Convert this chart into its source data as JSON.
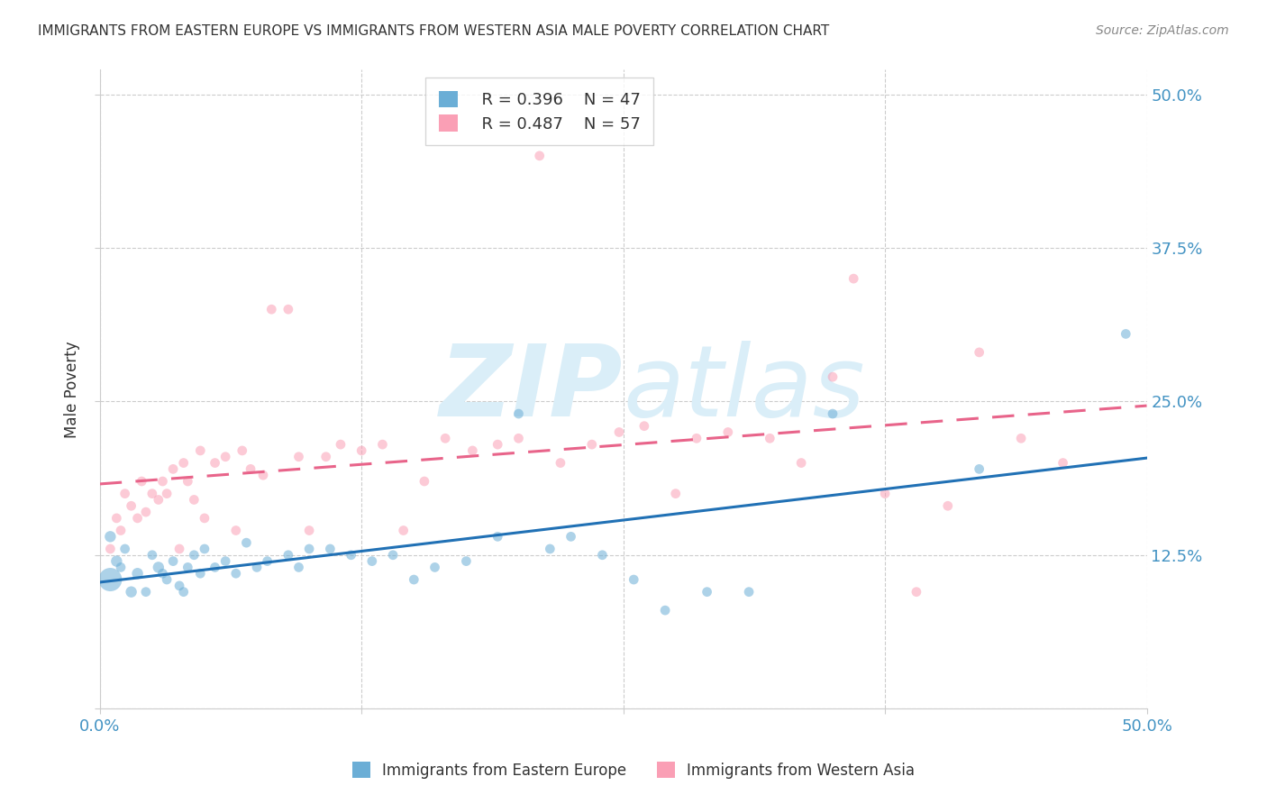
{
  "title": "IMMIGRANTS FROM EASTERN EUROPE VS IMMIGRANTS FROM WESTERN ASIA MALE POVERTY CORRELATION CHART",
  "source": "Source: ZipAtlas.com",
  "ylabel": "Male Poverty",
  "legend_r1": "R = 0.396",
  "legend_n1": "N = 47",
  "legend_r2": "R = 0.487",
  "legend_n2": "N = 57",
  "color_blue": "#6baed6",
  "color_pink": "#fa9fb5",
  "line_blue": "#2171b5",
  "line_pink": "#e8648a",
  "title_color": "#333333",
  "tick_label_color": "#4393c3",
  "watermark_color": "#daeef8",
  "x_lim": [
    0.0,
    0.5
  ],
  "y_lim": [
    0.0,
    0.52
  ],
  "x_tick_positions": [
    0.0,
    0.125,
    0.25,
    0.375,
    0.5
  ],
  "x_tick_labels": [
    "0.0%",
    "",
    "",
    "",
    "50.0%"
  ],
  "y_tick_positions": [
    0.0,
    0.125,
    0.25,
    0.375,
    0.5
  ],
  "y_tick_labels_right": [
    "",
    "12.5%",
    "25.0%",
    "37.5%",
    "50.0%"
  ],
  "eastern_europe_x": [
    0.005,
    0.008,
    0.01,
    0.012,
    0.015,
    0.005,
    0.018,
    0.022,
    0.025,
    0.028,
    0.03,
    0.032,
    0.035,
    0.038,
    0.04,
    0.042,
    0.045,
    0.048,
    0.05,
    0.055,
    0.06,
    0.065,
    0.07,
    0.075,
    0.08,
    0.09,
    0.095,
    0.1,
    0.11,
    0.12,
    0.13,
    0.14,
    0.15,
    0.16,
    0.175,
    0.19,
    0.2,
    0.215,
    0.225,
    0.24,
    0.255,
    0.27,
    0.29,
    0.31,
    0.35,
    0.42,
    0.49
  ],
  "eastern_europe_y": [
    0.105,
    0.12,
    0.115,
    0.13,
    0.095,
    0.14,
    0.11,
    0.095,
    0.125,
    0.115,
    0.11,
    0.105,
    0.12,
    0.1,
    0.095,
    0.115,
    0.125,
    0.11,
    0.13,
    0.115,
    0.12,
    0.11,
    0.135,
    0.115,
    0.12,
    0.125,
    0.115,
    0.13,
    0.13,
    0.125,
    0.12,
    0.125,
    0.105,
    0.115,
    0.12,
    0.14,
    0.24,
    0.13,
    0.14,
    0.125,
    0.105,
    0.08,
    0.095,
    0.095,
    0.24,
    0.195,
    0.305
  ],
  "eastern_europe_size": [
    350,
    80,
    60,
    60,
    80,
    80,
    80,
    60,
    60,
    80,
    60,
    60,
    60,
    60,
    60,
    60,
    60,
    60,
    60,
    60,
    60,
    60,
    60,
    60,
    60,
    60,
    60,
    60,
    60,
    60,
    60,
    60,
    60,
    60,
    60,
    60,
    60,
    60,
    60,
    60,
    60,
    60,
    60,
    60,
    60,
    60,
    60
  ],
  "western_asia_x": [
    0.005,
    0.008,
    0.01,
    0.012,
    0.015,
    0.018,
    0.02,
    0.022,
    0.025,
    0.028,
    0.03,
    0.032,
    0.035,
    0.038,
    0.04,
    0.042,
    0.045,
    0.048,
    0.05,
    0.055,
    0.06,
    0.065,
    0.068,
    0.072,
    0.078,
    0.082,
    0.09,
    0.095,
    0.1,
    0.108,
    0.115,
    0.125,
    0.135,
    0.145,
    0.155,
    0.165,
    0.178,
    0.19,
    0.2,
    0.21,
    0.22,
    0.235,
    0.248,
    0.26,
    0.275,
    0.285,
    0.3,
    0.32,
    0.335,
    0.35,
    0.36,
    0.375,
    0.39,
    0.405,
    0.42,
    0.44,
    0.46
  ],
  "western_asia_y": [
    0.13,
    0.155,
    0.145,
    0.175,
    0.165,
    0.155,
    0.185,
    0.16,
    0.175,
    0.17,
    0.185,
    0.175,
    0.195,
    0.13,
    0.2,
    0.185,
    0.17,
    0.21,
    0.155,
    0.2,
    0.205,
    0.145,
    0.21,
    0.195,
    0.19,
    0.325,
    0.325,
    0.205,
    0.145,
    0.205,
    0.215,
    0.21,
    0.215,
    0.145,
    0.185,
    0.22,
    0.21,
    0.215,
    0.22,
    0.45,
    0.2,
    0.215,
    0.225,
    0.23,
    0.175,
    0.22,
    0.225,
    0.22,
    0.2,
    0.27,
    0.35,
    0.175,
    0.095,
    0.165,
    0.29,
    0.22,
    0.2
  ],
  "western_asia_size": [
    60,
    60,
    60,
    60,
    60,
    60,
    60,
    60,
    60,
    60,
    60,
    60,
    60,
    60,
    60,
    60,
    60,
    60,
    60,
    60,
    60,
    60,
    60,
    60,
    60,
    60,
    60,
    60,
    60,
    60,
    60,
    60,
    60,
    60,
    60,
    60,
    60,
    60,
    60,
    60,
    60,
    60,
    60,
    60,
    60,
    60,
    60,
    60,
    60,
    60,
    60,
    60,
    60,
    60,
    60,
    60,
    60
  ]
}
